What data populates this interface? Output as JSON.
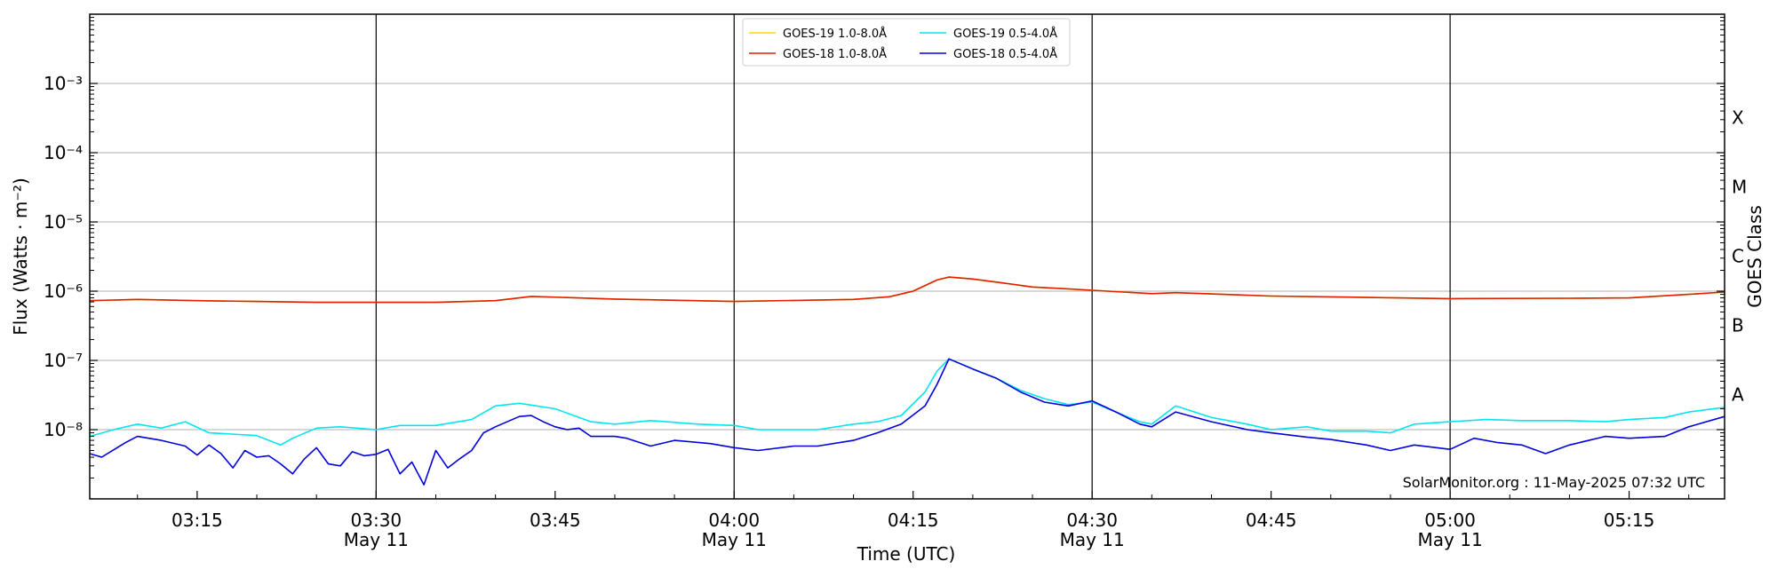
{
  "chart_data": {
    "type": "line",
    "xlabel": "Time (UTC)",
    "ylabel": "Flux (Watts · m⁻²)",
    "ylabel2": "GOES Class",
    "yscale": "log",
    "x_range": [
      "03:06",
      "05:23"
    ],
    "ylim": [
      1e-09,
      0.01
    ],
    "y_ticks": [
      {
        "value": 1e-08,
        "label": "10⁻⁸"
      },
      {
        "value": 1e-07,
        "label": "10⁻⁷"
      },
      {
        "value": 1e-06,
        "label": "10⁻⁶"
      },
      {
        "value": 1e-05,
        "label": "10⁻⁵"
      },
      {
        "value": 0.0001,
        "label": "10⁻⁴"
      },
      {
        "value": 0.001,
        "label": "10⁻³"
      }
    ],
    "x_ticks": [
      {
        "time": "03:15",
        "label": "03:15",
        "sublabel": ""
      },
      {
        "time": "03:30",
        "label": "03:30",
        "sublabel": "May 11"
      },
      {
        "time": "03:45",
        "label": "03:45",
        "sublabel": ""
      },
      {
        "time": "04:00",
        "label": "04:00",
        "sublabel": "May 11"
      },
      {
        "time": "04:15",
        "label": "04:15",
        "sublabel": ""
      },
      {
        "time": "04:30",
        "label": "04:30",
        "sublabel": "May 11"
      },
      {
        "time": "04:45",
        "label": "04:45",
        "sublabel": ""
      },
      {
        "time": "05:00",
        "label": "05:00",
        "sublabel": "May 11"
      },
      {
        "time": "05:15",
        "label": "05:15",
        "sublabel": ""
      }
    ],
    "vertical_lines": [
      "03:30",
      "04:00",
      "04:30",
      "05:00"
    ],
    "goes_classes": [
      {
        "label": "A",
        "value": 3.2e-08
      },
      {
        "label": "B",
        "value": 3.2e-07
      },
      {
        "label": "C",
        "value": 3.2e-06
      },
      {
        "label": "M",
        "value": 3.2e-05
      },
      {
        "label": "X",
        "value": 0.00032
      }
    ],
    "grid": "horizontal major",
    "legend_position": "top-center",
    "series": [
      {
        "name": "GOES-19 1.0-8.0Å",
        "color": "#ffd700",
        "x": [
          "03:06",
          "03:10",
          "03:15",
          "03:20",
          "03:25",
          "03:30",
          "03:35",
          "03:40",
          "03:43",
          "03:50",
          "04:00",
          "04:10",
          "04:13",
          "04:15",
          "04:17",
          "04:18",
          "04:20",
          "04:22",
          "04:25",
          "04:28",
          "04:30",
          "04:35",
          "04:37",
          "04:45",
          "05:00",
          "05:10",
          "05:15",
          "05:20",
          "05:23"
        ],
        "values": [
          7.3e-07,
          7.6e-07,
          7.3e-07,
          7.1e-07,
          6.9e-07,
          6.9e-07,
          6.9e-07,
          7.3e-07,
          8.4e-07,
          7.7e-07,
          7.1e-07,
          7.6e-07,
          8.3e-07,
          1e-06,
          1.45e-06,
          1.6e-06,
          1.5e-06,
          1.35e-06,
          1.15e-06,
          1.08e-06,
          1.03e-06,
          9.2e-07,
          9.5e-07,
          8.5e-07,
          7.8e-07,
          7.9e-07,
          8e-07,
          9e-07,
          9.7e-07
        ]
      },
      {
        "name": "GOES-18 1.0-8.0Å",
        "color": "#e02000",
        "x": [
          "03:06",
          "03:10",
          "03:15",
          "03:20",
          "03:25",
          "03:30",
          "03:35",
          "03:40",
          "03:43",
          "03:50",
          "04:00",
          "04:10",
          "04:13",
          "04:15",
          "04:17",
          "04:18",
          "04:20",
          "04:22",
          "04:25",
          "04:28",
          "04:30",
          "04:35",
          "04:37",
          "04:45",
          "05:00",
          "05:10",
          "05:15",
          "05:20",
          "05:23"
        ],
        "values": [
          7.3e-07,
          7.6e-07,
          7.3e-07,
          7.1e-07,
          6.9e-07,
          6.9e-07,
          6.9e-07,
          7.3e-07,
          8.4e-07,
          7.7e-07,
          7.1e-07,
          7.6e-07,
          8.3e-07,
          1e-06,
          1.45e-06,
          1.6e-06,
          1.5e-06,
          1.35e-06,
          1.15e-06,
          1.08e-06,
          1.03e-06,
          9.2e-07,
          9.5e-07,
          8.5e-07,
          7.8e-07,
          7.9e-07,
          8e-07,
          9e-07,
          9.7e-07
        ]
      },
      {
        "name": "GOES-19 0.5-4.0Å",
        "color": "#00e5ee",
        "x": [
          "03:06",
          "03:08",
          "03:10",
          "03:12",
          "03:14",
          "03:16",
          "03:17",
          "03:20",
          "03:22",
          "03:23",
          "03:25",
          "03:27",
          "03:30",
          "03:32",
          "03:35",
          "03:38",
          "03:40",
          "03:42",
          "03:45",
          "03:48",
          "03:50",
          "03:53",
          "03:57",
          "04:00",
          "04:02",
          "04:05",
          "04:07",
          "04:10",
          "04:12",
          "04:14",
          "04:16",
          "04:17",
          "04:18",
          "04:20",
          "04:22",
          "04:24",
          "04:26",
          "04:28",
          "04:30",
          "04:32",
          "04:34",
          "04:35",
          "04:37",
          "04:40",
          "04:43",
          "04:45",
          "04:48",
          "04:50",
          "04:53",
          "04:55",
          "04:57",
          "05:00",
          "05:03",
          "05:06",
          "05:10",
          "05:13",
          "05:15",
          "05:18",
          "05:20",
          "05:23"
        ],
        "values": [
          8e-09,
          1e-08,
          1.2e-08,
          1.05e-08,
          1.3e-08,
          9e-09,
          8.8e-09,
          8.2e-09,
          6e-09,
          7.5e-09,
          1.05e-08,
          1.1e-08,
          1e-08,
          1.15e-08,
          1.15e-08,
          1.4e-08,
          2.2e-08,
          2.4e-08,
          2e-08,
          1.3e-08,
          1.2e-08,
          1.35e-08,
          1.2e-08,
          1.15e-08,
          1e-08,
          1e-08,
          1e-08,
          1.2e-08,
          1.3e-08,
          1.6e-08,
          3.5e-08,
          7e-08,
          1.05e-07,
          7.5e-08,
          5.5e-08,
          3.7e-08,
          2.8e-08,
          2.3e-08,
          2.5e-08,
          1.8e-08,
          1.3e-08,
          1.2e-08,
          2.2e-08,
          1.5e-08,
          1.2e-08,
          1e-08,
          1.1e-08,
          9.5e-09,
          9.5e-09,
          9e-09,
          1.2e-08,
          1.3e-08,
          1.4e-08,
          1.35e-08,
          1.35e-08,
          1.3e-08,
          1.4e-08,
          1.5e-08,
          1.8e-08,
          2.1e-08
        ]
      },
      {
        "name": "GOES-18 0.5-4.0Å",
        "color": "#0000dd",
        "x": [
          "03:06",
          "03:07",
          "03:09",
          "03:10",
          "03:12",
          "03:14",
          "03:15",
          "03:16",
          "03:17",
          "03:18",
          "03:19",
          "03:20",
          "03:21",
          "03:22",
          "03:23",
          "03:24",
          "03:25",
          "03:26",
          "03:27",
          "03:28",
          "03:29",
          "03:30",
          "03:31",
          "03:32",
          "03:33",
          "03:34",
          "03:35",
          "03:36",
          "03:37",
          "03:38",
          "03:39",
          "03:40",
          "03:42",
          "03:43",
          "03:44",
          "03:45",
          "03:46",
          "03:47",
          "03:48",
          "03:50",
          "03:51",
          "03:53",
          "03:55",
          "03:58",
          "04:00",
          "04:02",
          "04:05",
          "04:07",
          "04:10",
          "04:12",
          "04:14",
          "04:16",
          "04:17",
          "04:18",
          "04:20",
          "04:22",
          "04:24",
          "04:26",
          "04:28",
          "04:30",
          "04:32",
          "04:34",
          "04:35",
          "04:37",
          "04:40",
          "04:43",
          "04:45",
          "04:48",
          "04:50",
          "04:53",
          "04:55",
          "04:57",
          "05:00",
          "05:02",
          "05:04",
          "05:06",
          "05:08",
          "05:10",
          "05:13",
          "05:15",
          "05:18",
          "05:20",
          "05:23"
        ],
        "values": [
          4.5e-09,
          4e-09,
          6.5e-09,
          8e-09,
          7e-09,
          5.8e-09,
          4.3e-09,
          6e-09,
          4.5e-09,
          2.8e-09,
          5e-09,
          4e-09,
          4.2e-09,
          3.2e-09,
          2.3e-09,
          3.8e-09,
          5.5e-09,
          3.2e-09,
          3e-09,
          4.8e-09,
          4.2e-09,
          4.4e-09,
          5.2e-09,
          2.3e-09,
          3.4e-09,
          1.6e-09,
          5e-09,
          2.8e-09,
          3.8e-09,
          5e-09,
          9e-09,
          1.1e-08,
          1.55e-08,
          1.6e-08,
          1.3e-08,
          1.1e-08,
          1e-08,
          1.05e-08,
          8e-09,
          8e-09,
          7.5e-09,
          5.8e-09,
          7e-09,
          6.3e-09,
          5.5e-09,
          5e-09,
          5.8e-09,
          5.8e-09,
          7e-09,
          9e-09,
          1.2e-08,
          2.2e-08,
          4.5e-08,
          1.05e-07,
          7.5e-08,
          5.5e-08,
          3.5e-08,
          2.5e-08,
          2.2e-08,
          2.6e-08,
          1.8e-08,
          1.2e-08,
          1.1e-08,
          1.8e-08,
          1.3e-08,
          1e-08,
          9e-09,
          7.8e-09,
          7.2e-09,
          6e-09,
          5e-09,
          6e-09,
          5.2e-09,
          7.5e-09,
          6.5e-09,
          6e-09,
          4.5e-09,
          6e-09,
          8e-09,
          7.5e-09,
          8e-09,
          1.1e-08,
          1.55e-08
        ]
      }
    ]
  },
  "credit": "SolarMonitor.org : 11-May-2025 07:32 UTC",
  "colors": {
    "grid": "#b0b0b0",
    "frame": "#000000",
    "background": "#ffffff"
  }
}
